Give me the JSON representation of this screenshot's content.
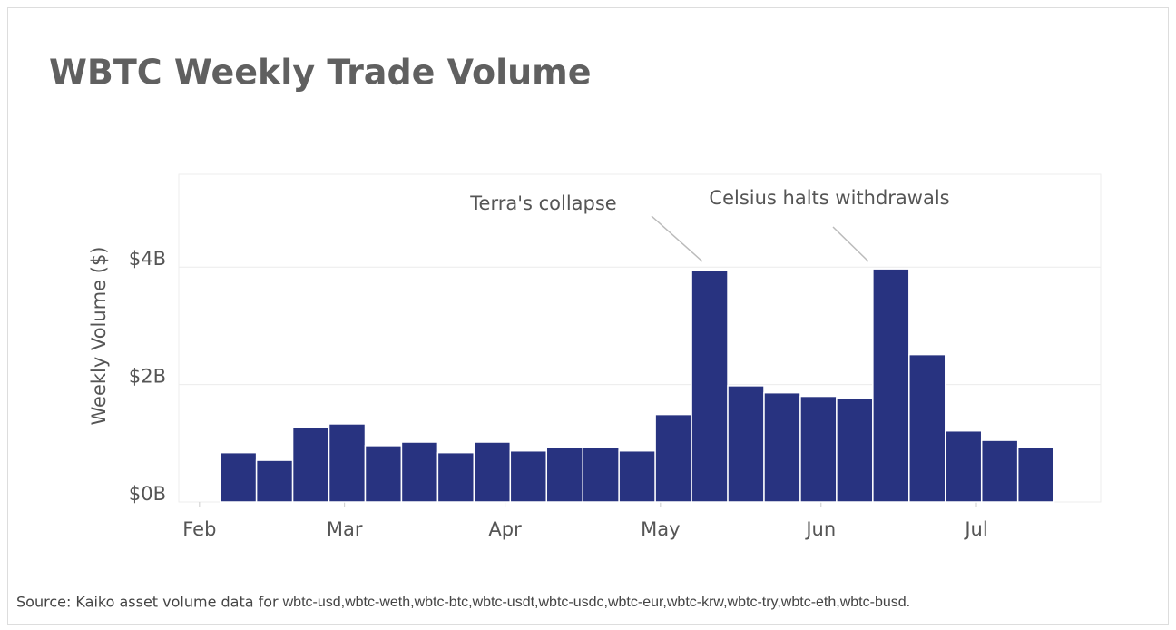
{
  "chart_data": {
    "type": "bar",
    "title": "WBTC Weekly Trade Volume",
    "y_label": "Weekly Volume ($)",
    "x": [
      36,
      43,
      50,
      57,
      64,
      71,
      78,
      85,
      92,
      99,
      106,
      113,
      120,
      127,
      134,
      141,
      148,
      155,
      162,
      169,
      176,
      183,
      190
    ],
    "bar_width": 7,
    "values": [
      0.84,
      0.71,
      1.27,
      1.33,
      0.96,
      1.02,
      0.84,
      1.02,
      0.87,
      0.93,
      0.93,
      0.87,
      1.49,
      3.94,
      1.98,
      1.86,
      1.8,
      1.77,
      3.97,
      2.51,
      1.21,
      1.05,
      0.93
    ],
    "color": "#283380",
    "xlim": [
      28,
      206
    ],
    "xticks": [
      {
        "value": 32,
        "label": "Feb"
      },
      {
        "value": 60,
        "label": "Mar"
      },
      {
        "value": 91,
        "label": "Apr"
      },
      {
        "value": 121,
        "label": "May"
      },
      {
        "value": 152,
        "label": "Jun"
      },
      {
        "value": 182,
        "label": "Jul"
      }
    ],
    "ylim": [
      0,
      5.58
    ],
    "yticks": [
      {
        "value": 0,
        "label": "$0B"
      },
      {
        "value": 2,
        "label": "$2B"
      },
      {
        "value": 4,
        "label": "$4B"
      }
    ],
    "grid": true,
    "annotations": [
      "Terra's collapse",
      "Celsius halts withdrawals"
    ],
    "source_label": "Source: Kaiko asset volume data for",
    "source_pairs": "wbtc-usd,wbtc-weth,wbtc-btc,wbtc-usdt,wbtc-usdc,wbtc-eur,wbtc-krw,wbtc-try,wbtc-eth,wbtc-busd."
  }
}
